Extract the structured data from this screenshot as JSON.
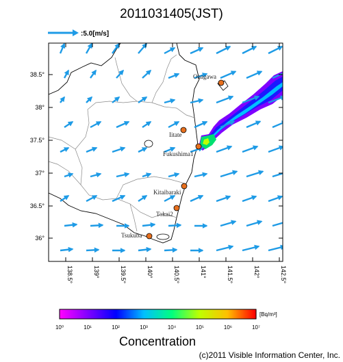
{
  "title": "2011031405(JST)",
  "scale": {
    "label": ":5.0[m/s]"
  },
  "map": {
    "lat_ticks": [
      "38.5°",
      "38°",
      "37.5°",
      "37°",
      "36.5°",
      "36°"
    ],
    "lon_ticks": [
      "138.5°",
      "139°",
      "139.5°",
      "140°",
      "140.5°",
      "141°",
      "141.5°",
      "142°",
      "142.5°"
    ],
    "places": [
      {
        "name": "Onagawa"
      },
      {
        "name": "Iitate"
      },
      {
        "name": "Fukushima1"
      },
      {
        "name": "Kitaibaraki"
      },
      {
        "name": "Tokai2"
      },
      {
        "name": "Tsukuba"
      }
    ],
    "colors": {
      "arrow": "#1e9be6",
      "site": "#e8701e",
      "coast": "#000000",
      "border": "#888888"
    }
  },
  "colorbar": {
    "unit": "[Bq/m³]",
    "ticks": [
      "10⁰",
      "10¹",
      "10²",
      "10³",
      "10⁴",
      "10⁵",
      "10⁶",
      "10⁷"
    ],
    "colors": [
      "#ff00ff",
      "#7f00ff",
      "#0000ff",
      "#00bfff",
      "#00ff7f",
      "#bfff00",
      "#ffbf00",
      "#ff0000"
    ],
    "title": "Concentration"
  },
  "copyright": "(c)2011 Visible Information Center, Inc."
}
